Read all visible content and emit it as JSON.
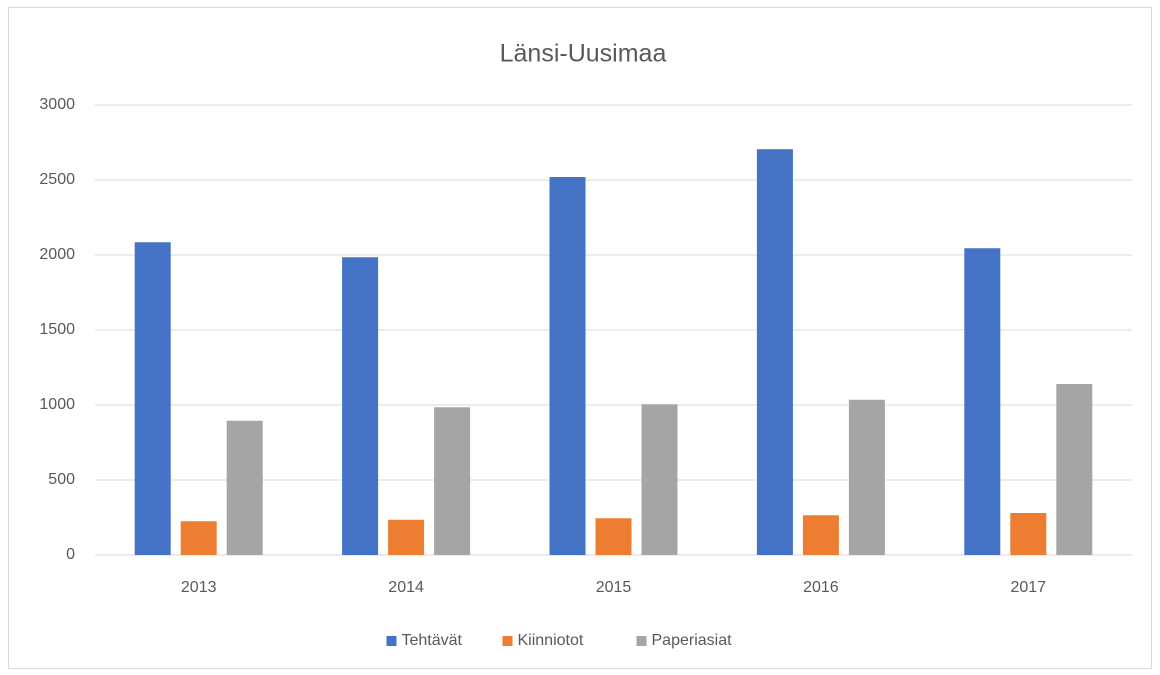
{
  "chart_data": {
    "type": "bar",
    "title": "Länsi-Uusimaa",
    "categories": [
      "2013",
      "2014",
      "2015",
      "2016",
      "2017"
    ],
    "series": [
      {
        "name": "Tehtävät",
        "color": "#4472c4",
        "values": [
          2085,
          1985,
          2520,
          2705,
          2045
        ]
      },
      {
        "name": "Kiinniotot",
        "color": "#ed7d31",
        "values": [
          225,
          235,
          245,
          265,
          280
        ]
      },
      {
        "name": "Paperiasiat",
        "color": "#a5a5a5",
        "values": [
          895,
          985,
          1005,
          1035,
          1140
        ]
      }
    ],
    "ylim": [
      0,
      3000
    ],
    "yticks": [
      0,
      500,
      1000,
      1500,
      2000,
      2500,
      3000
    ],
    "grid": true,
    "legend": "bottom"
  }
}
